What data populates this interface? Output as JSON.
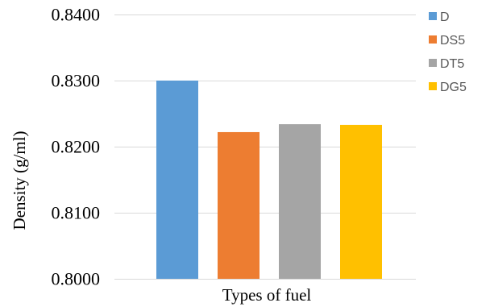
{
  "chart_data": {
    "type": "bar",
    "title": "",
    "xlabel": "Types of fuel",
    "ylabel": "Density (g/ml)",
    "ylim": [
      0.8,
      0.84
    ],
    "yticks": [
      "0.8000",
      "0.8100",
      "0.8200",
      "0.8300",
      "0.8400"
    ],
    "ytick_values": [
      0.8,
      0.81,
      0.82,
      0.83,
      0.84
    ],
    "grid": true,
    "legend_position": "right",
    "series": [
      {
        "name": "D",
        "value": 0.83,
        "color": "#5B9BD5"
      },
      {
        "name": "DS5",
        "value": 0.8222,
        "color": "#ED7D31"
      },
      {
        "name": "DT5",
        "value": 0.8234,
        "color": "#A5A5A5"
      },
      {
        "name": "DG5",
        "value": 0.8233,
        "color": "#FFC000"
      }
    ]
  }
}
